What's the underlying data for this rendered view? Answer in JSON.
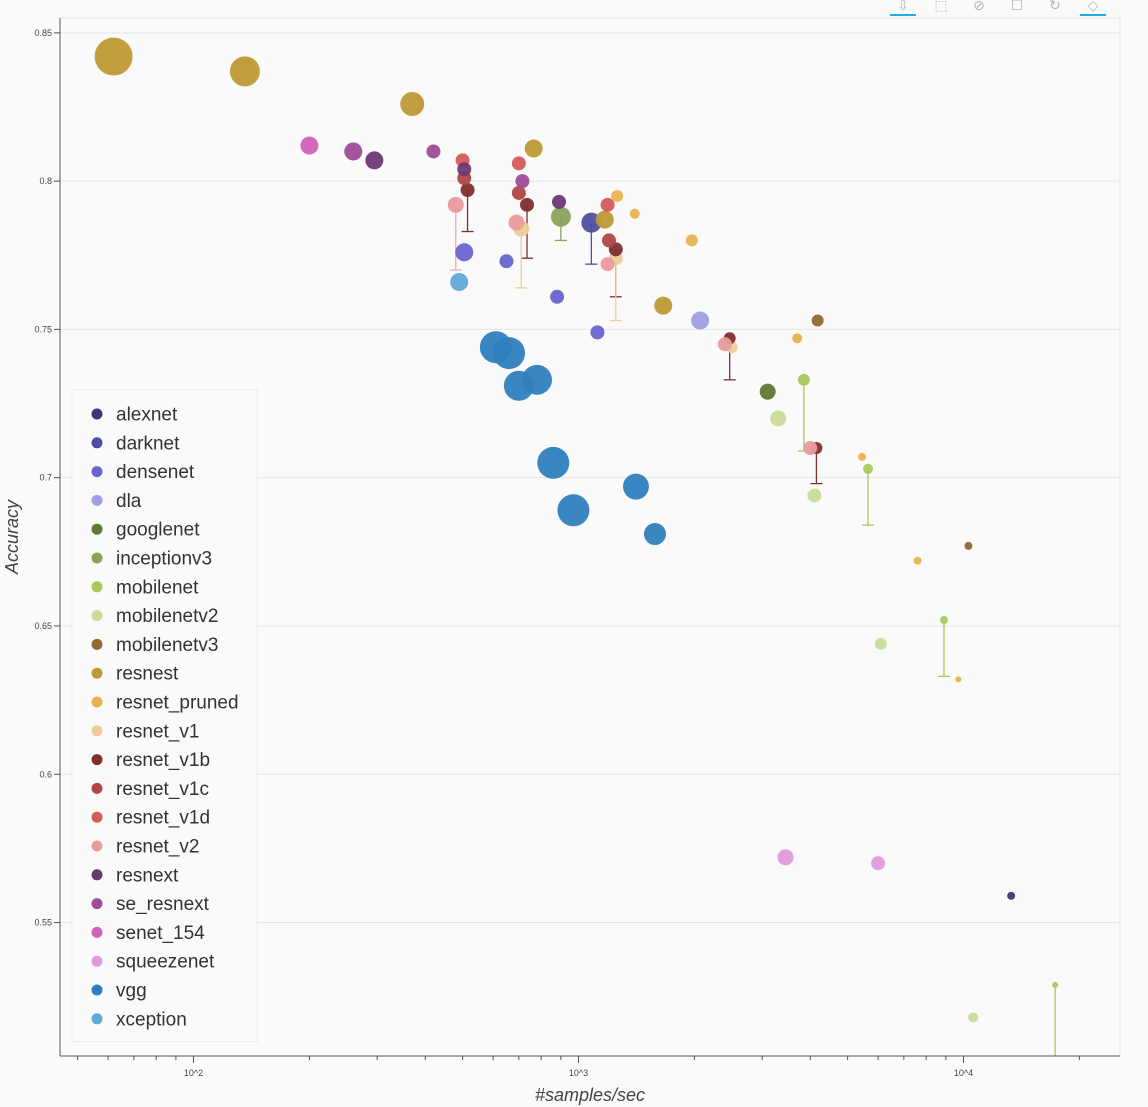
{
  "toolbar": {
    "tools": [
      {
        "name": "save-tool",
        "icon": "download-icon",
        "glyph": "⇩",
        "active": true
      },
      {
        "name": "box-zoom-tool",
        "icon": "box-zoom-icon",
        "glyph": "⬚",
        "active": false
      },
      {
        "name": "wheel-zoom-tool",
        "icon": "wheel-zoom-icon",
        "glyph": "⊘",
        "active": false
      },
      {
        "name": "box-select-tool",
        "icon": "box-select-icon",
        "glyph": "☐",
        "active": false
      },
      {
        "name": "reset-tool",
        "icon": "reset-icon",
        "glyph": "↻",
        "active": false
      },
      {
        "name": "hover-tool",
        "icon": "hover-icon",
        "glyph": "◇",
        "active": true
      }
    ]
  },
  "chart_data": {
    "type": "scatter",
    "xlabel": "#samples/sec",
    "ylabel": "Accuracy",
    "xscale": "log",
    "xlim": [
      45,
      25500
    ],
    "ylim": [
      0.505,
      0.855
    ],
    "xticks": [
      {
        "value": 100,
        "label": "10^2"
      },
      {
        "value": 1000,
        "label": "10^3"
      },
      {
        "value": 10000,
        "label": "10^4"
      }
    ],
    "yticks": [
      {
        "value": 0.55,
        "label": "0.55"
      },
      {
        "value": 0.6,
        "label": "0.6"
      },
      {
        "value": 0.65,
        "label": "0.65"
      },
      {
        "value": 0.7,
        "label": "0.7"
      },
      {
        "value": 0.75,
        "label": "0.75"
      },
      {
        "value": 0.8,
        "label": "0.8"
      },
      {
        "value": 0.85,
        "label": "0.85"
      }
    ],
    "grid": "horizontal",
    "legend_position": "left",
    "series": [
      {
        "name": "alexnet",
        "color": "#3b3874",
        "points": [
          [
            13300,
            0.559,
            4
          ]
        ]
      },
      {
        "name": "darknet",
        "color": "#4f4f9e",
        "points": [
          [
            1080,
            0.786,
            10
          ]
        ]
      },
      {
        "name": "densenet",
        "color": "#6a63cf",
        "points": [
          [
            505,
            0.776,
            9
          ],
          [
            650,
            0.773,
            7
          ],
          [
            880,
            0.761,
            7
          ],
          [
            1120,
            0.749,
            7
          ]
        ]
      },
      {
        "name": "dla",
        "color": "#a09fe0",
        "points": [
          [
            2070,
            0.753,
            9
          ]
        ]
      },
      {
        "name": "googlenet",
        "color": "#5f7a32",
        "points": [
          [
            3100,
            0.729,
            8
          ]
        ]
      },
      {
        "name": "inceptionv3",
        "color": "#8ba25a",
        "points": [
          [
            900,
            0.788,
            10
          ]
        ]
      },
      {
        "name": "mobilenet",
        "color": "#a9c95b",
        "points": [
          [
            3850,
            0.733,
            6
          ],
          [
            5650,
            0.703,
            5
          ],
          [
            8900,
            0.652,
            4
          ],
          [
            17300,
            0.529,
            3
          ]
        ]
      },
      {
        "name": "mobilenetv2",
        "color": "#c9dc98",
        "points": [
          [
            3300,
            0.72,
            8
          ],
          [
            4100,
            0.694,
            7
          ],
          [
            6100,
            0.644,
            6
          ],
          [
            10600,
            0.518,
            5
          ]
        ]
      },
      {
        "name": "mobilenetv3",
        "color": "#8c6c2e",
        "points": [
          [
            4180,
            0.753,
            6
          ],
          [
            10300,
            0.677,
            4
          ]
        ]
      },
      {
        "name": "resnest",
        "color": "#bf9a34",
        "points": [
          [
            62,
            0.842,
            19
          ],
          [
            136,
            0.837,
            15
          ],
          [
            370,
            0.826,
            12
          ],
          [
            765,
            0.811,
            9
          ],
          [
            1170,
            0.787,
            9
          ],
          [
            1660,
            0.758,
            9
          ]
        ]
      },
      {
        "name": "resnet_pruned",
        "color": "#e8b34e",
        "points": [
          [
            1260,
            0.795,
            6
          ],
          [
            1400,
            0.789,
            5
          ],
          [
            1970,
            0.78,
            6
          ],
          [
            3700,
            0.747,
            5
          ],
          [
            5450,
            0.707,
            4
          ],
          [
            7600,
            0.672,
            4
          ],
          [
            9700,
            0.632,
            3
          ]
        ]
      },
      {
        "name": "resnet_v1",
        "color": "#edcc9a",
        "points": [
          [
            710,
            0.784,
            8
          ],
          [
            1250,
            0.774,
            7
          ],
          [
            2500,
            0.744,
            6
          ]
        ]
      },
      {
        "name": "resnet_v1b",
        "color": "#7f2f2f",
        "points": [
          [
            515,
            0.797,
            7
          ],
          [
            735,
            0.792,
            7
          ],
          [
            1250,
            0.777,
            7
          ],
          [
            2470,
            0.747,
            6
          ],
          [
            4150,
            0.71,
            6
          ]
        ]
      },
      {
        "name": "resnet_v1c",
        "color": "#b04646",
        "points": [
          [
            505,
            0.801,
            7
          ],
          [
            700,
            0.796,
            7
          ],
          [
            1200,
            0.78,
            7
          ]
        ]
      },
      {
        "name": "resnet_v1d",
        "color": "#d45b5b",
        "points": [
          [
            500,
            0.807,
            7
          ],
          [
            700,
            0.806,
            7
          ],
          [
            1190,
            0.792,
            7
          ]
        ]
      },
      {
        "name": "resnet_v2",
        "color": "#e99b9e",
        "points": [
          [
            480,
            0.792,
            8
          ],
          [
            690,
            0.786,
            8
          ],
          [
            1190,
            0.772,
            7
          ],
          [
            2400,
            0.745,
            7
          ],
          [
            4000,
            0.71,
            7
          ]
        ]
      },
      {
        "name": "resnext",
        "color": "#6b3a72",
        "points": [
          [
            295,
            0.807,
            9
          ],
          [
            505,
            0.804,
            7
          ],
          [
            890,
            0.793,
            7
          ]
        ]
      },
      {
        "name": "se_resnext",
        "color": "#9e4c96",
        "points": [
          [
            260,
            0.81,
            9
          ],
          [
            420,
            0.81,
            7
          ],
          [
            715,
            0.8,
            7
          ]
        ]
      },
      {
        "name": "senet_154",
        "color": "#cf62b9",
        "points": [
          [
            200,
            0.812,
            9
          ]
        ]
      },
      {
        "name": "squeezenet",
        "color": "#e09ad9",
        "points": [
          [
            3450,
            0.572,
            8
          ],
          [
            6000,
            0.57,
            7
          ]
        ]
      },
      {
        "name": "vgg",
        "color": "#2f7fbd",
        "points": [
          [
            610,
            0.744,
            16
          ],
          [
            660,
            0.742,
            16
          ],
          [
            700,
            0.731,
            15
          ],
          [
            780,
            0.733,
            15
          ],
          [
            860,
            0.705,
            16
          ],
          [
            970,
            0.689,
            16
          ],
          [
            1410,
            0.697,
            13
          ],
          [
            1580,
            0.681,
            11
          ]
        ]
      },
      {
        "name": "xception",
        "color": "#5fa8d8",
        "points": [
          [
            490,
            0.766,
            9
          ]
        ]
      }
    ],
    "error_bars": [
      {
        "color": "#e8b0b0",
        "x": 480,
        "y_top": 0.792,
        "y_bottom": 0.77
      },
      {
        "color": "#7f2f2f",
        "x": 515,
        "y_top": 0.797,
        "y_bottom": 0.783
      },
      {
        "color": "#7f2f2f",
        "x": 735,
        "y_top": 0.792,
        "y_bottom": 0.774
      },
      {
        "color": "#edcc9a",
        "x": 710,
        "y_top": 0.784,
        "y_bottom": 0.764
      },
      {
        "color": "#8ba25a",
        "x": 900,
        "y_top": 0.788,
        "y_bottom": 0.78
      },
      {
        "color": "#4f4f9e",
        "x": 1080,
        "y_top": 0.786,
        "y_bottom": 0.772
      },
      {
        "color": "#7f2f2f",
        "x": 1250,
        "y_top": 0.777,
        "y_bottom": 0.761
      },
      {
        "color": "#edcc9a",
        "x": 1250,
        "y_top": 0.774,
        "y_bottom": 0.753
      },
      {
        "color": "#7f2f2f",
        "x": 2470,
        "y_top": 0.747,
        "y_bottom": 0.733
      },
      {
        "color": "#a9c95b",
        "x": 3850,
        "y_top": 0.733,
        "y_bottom": 0.709
      },
      {
        "color": "#7f2f2f",
        "x": 4150,
        "y_top": 0.71,
        "y_bottom": 0.698
      },
      {
        "color": "#a9c95b",
        "x": 5650,
        "y_top": 0.703,
        "y_bottom": 0.684
      },
      {
        "color": "#a9c95b",
        "x": 8900,
        "y_top": 0.652,
        "y_bottom": 0.633
      },
      {
        "color": "#a9c95b",
        "x": 17300,
        "y_top": 0.529,
        "y_bottom": 0.505
      }
    ]
  }
}
